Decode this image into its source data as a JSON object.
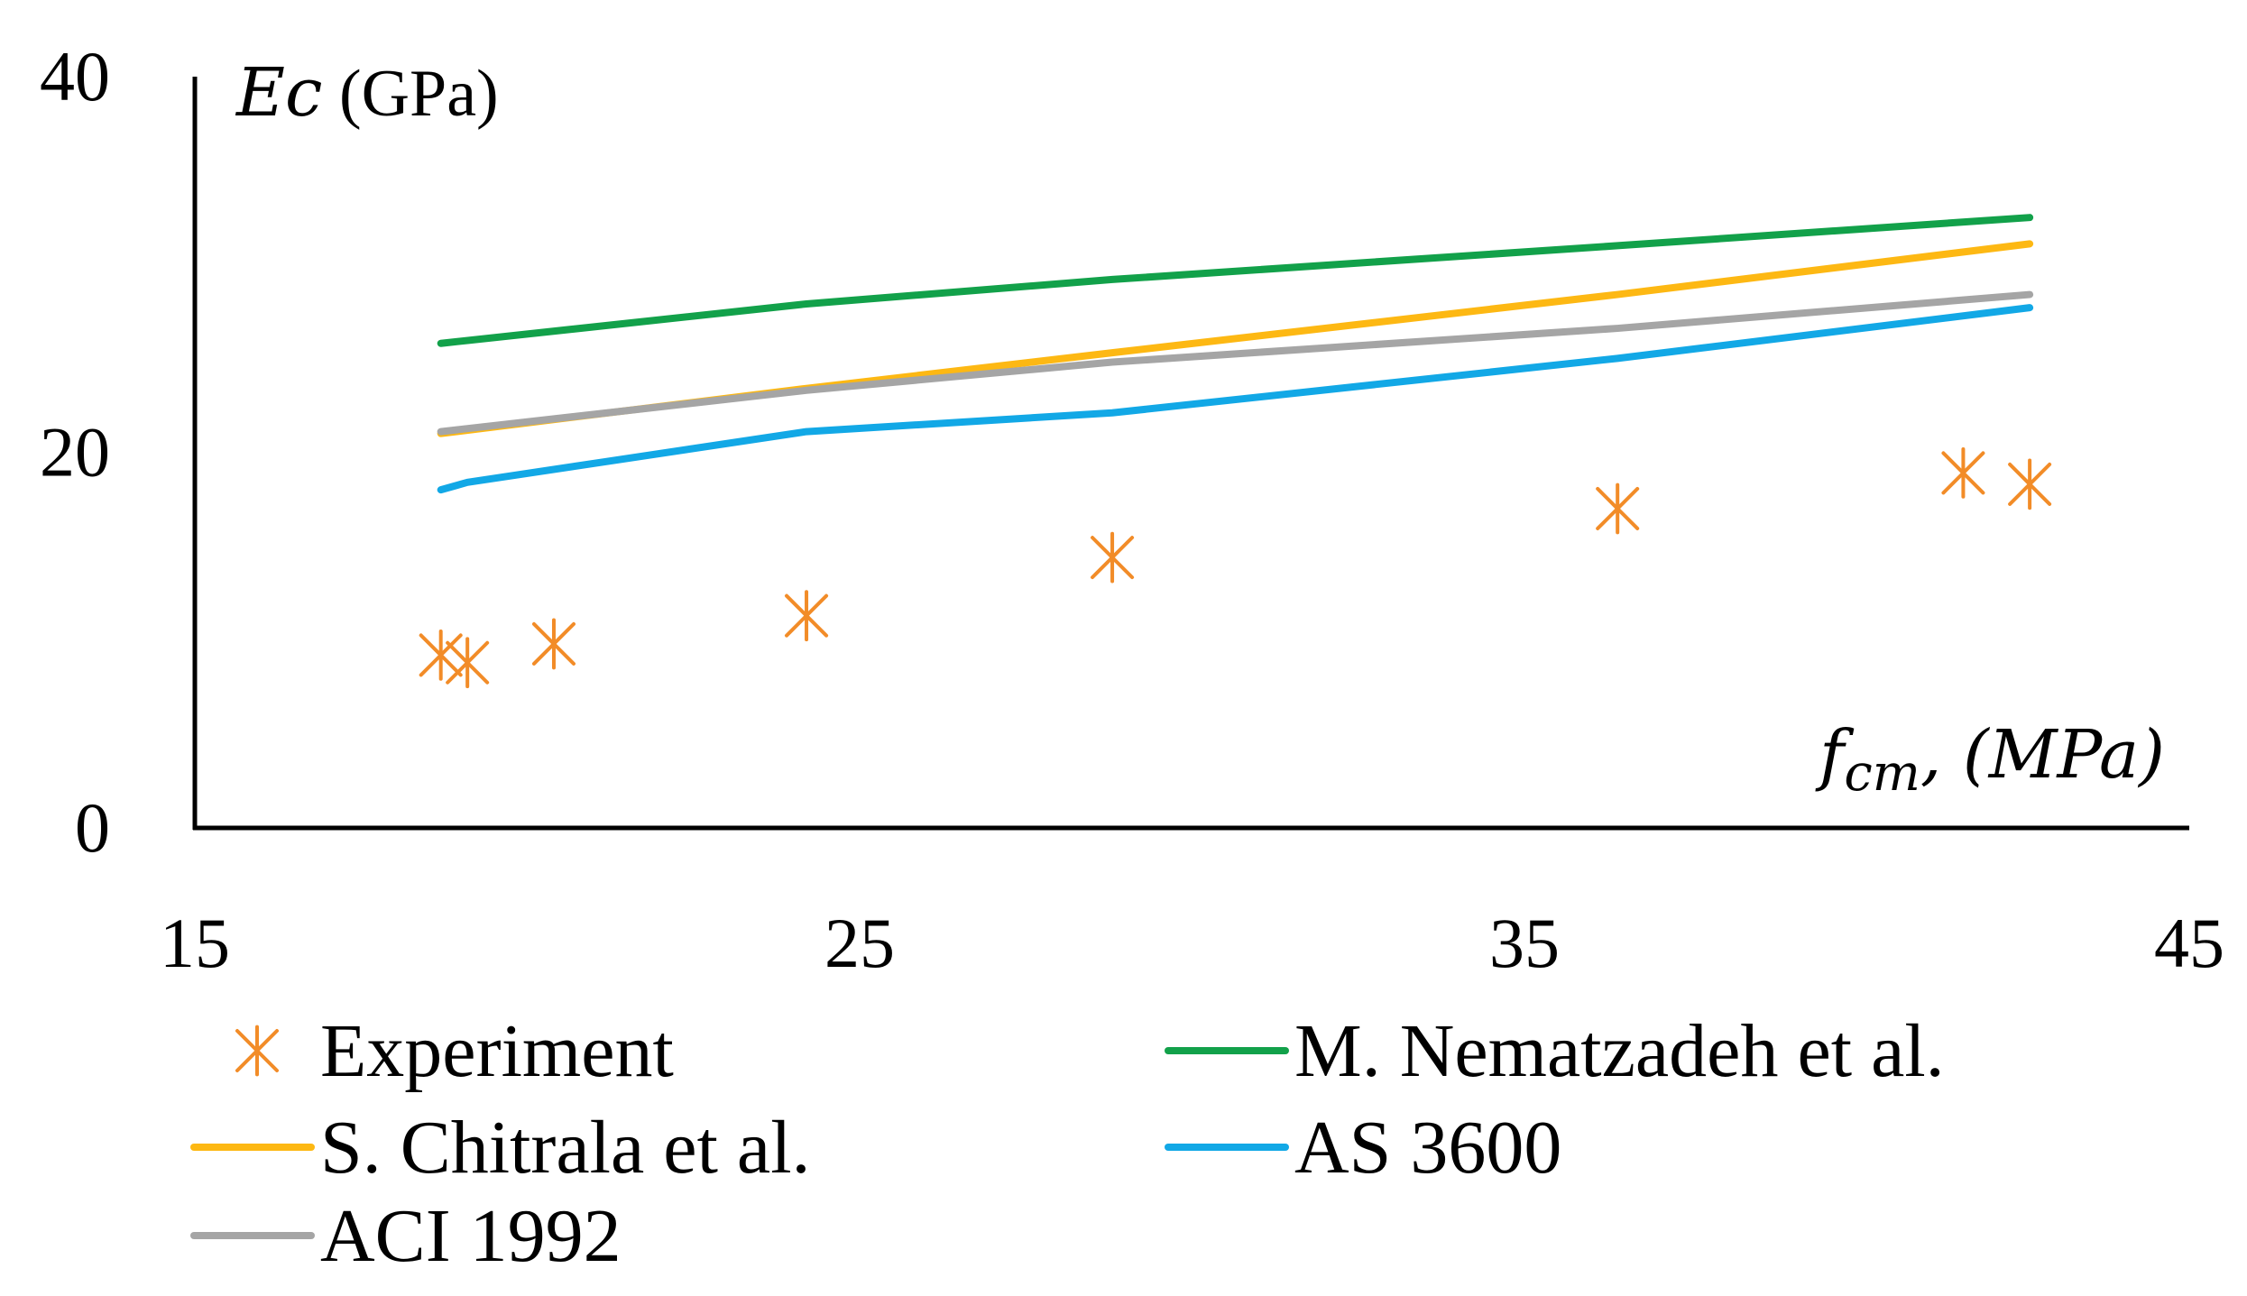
{
  "chart_data": {
    "type": "line",
    "title": "",
    "x_label": {
      "main": "f",
      "sub": "cm",
      "rest": ", (MPa)"
    },
    "y_label": {
      "main": "Ec",
      "rest": " (GPa)"
    },
    "xlim": [
      15,
      45
    ],
    "ylim": [
      0,
      40
    ],
    "x_ticks": [
      15,
      25,
      35,
      45
    ],
    "y_ticks": [
      0,
      20,
      40
    ],
    "grid": false,
    "legend_position": "bottom",
    "series": [
      {
        "name": "Experiment",
        "kind": "scatter",
        "marker": "asterisk",
        "color": "#F28C28",
        "x": [
          18.7,
          19.1,
          20.4,
          24.2,
          28.8,
          36.4,
          41.6,
          42.6
        ],
        "y": [
          9.2,
          8.8,
          9.8,
          11.3,
          14.4,
          17.0,
          18.9,
          18.3
        ]
      },
      {
        "name": "M. Nematzadeh et al.",
        "kind": "line",
        "color": "#12A14A",
        "x": [
          18.7,
          24.2,
          28.8,
          36.4,
          42.6
        ],
        "y": [
          25.8,
          27.9,
          29.2,
          31.0,
          32.5
        ]
      },
      {
        "name": "S. Chitrala et al.",
        "kind": "line",
        "color": "#FDB813",
        "x": [
          18.7,
          24.2,
          28.8,
          36.4,
          42.6
        ],
        "y": [
          21.0,
          23.4,
          25.3,
          28.4,
          31.1
        ]
      },
      {
        "name": "AS 3600",
        "kind": "line",
        "color": "#12A8E6",
        "x": [
          18.7,
          19.1,
          24.2,
          28.8,
          36.4,
          42.6
        ],
        "y": [
          18.0,
          18.4,
          21.1,
          22.1,
          25.0,
          27.7
        ]
      },
      {
        "name": "ACI 1992",
        "kind": "line",
        "color": "#A5A5A5",
        "x": [
          18.7,
          24.2,
          28.8,
          36.4,
          42.6
        ],
        "y": [
          21.1,
          23.3,
          24.8,
          26.6,
          28.4
        ]
      }
    ]
  }
}
